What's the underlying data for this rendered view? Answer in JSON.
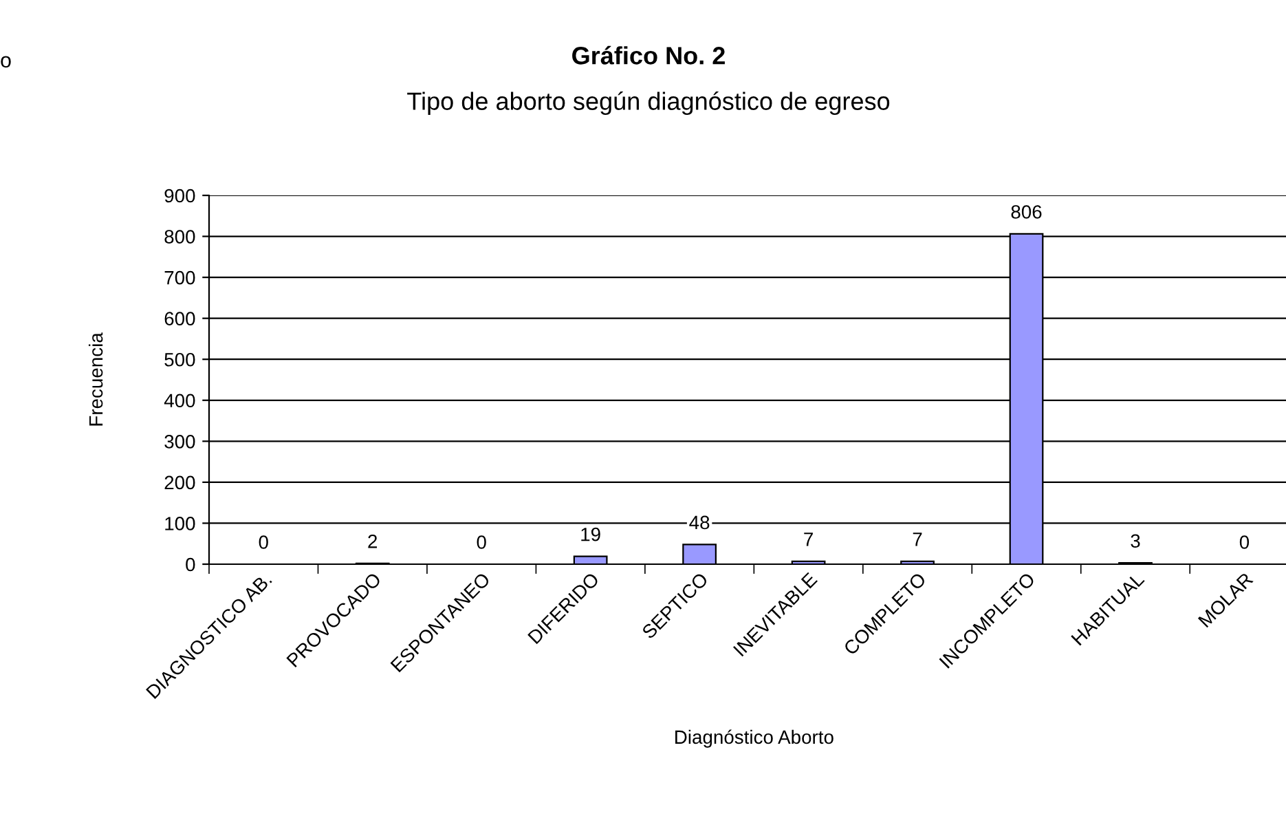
{
  "chart_data": {
    "type": "bar",
    "title": "Gráfico No. 2",
    "subtitle": "Tipo de aborto según diagnóstico de egreso",
    "xlabel": "Diagnóstico Aborto",
    "ylabel": "Frecuencia",
    "categories": [
      "DIAGNOSTICO AB.",
      "PROVOCADO",
      "ESPONTANEO",
      "DIFERIDO",
      "SEPTICO",
      "INEVITABLE",
      "COMPLETO",
      "INCOMPLETO",
      "HABITUAL",
      "MOLAR"
    ],
    "values": [
      0,
      2,
      0,
      19,
      48,
      7,
      7,
      806,
      3,
      0
    ],
    "color": "#9999ff",
    "ylim": [
      0,
      900
    ],
    "yticks": [
      0,
      100,
      200,
      300,
      400,
      500,
      600,
      700,
      800,
      900
    ],
    "grid": "y",
    "data_labels": true,
    "annotations": [
      "o"
    ]
  }
}
